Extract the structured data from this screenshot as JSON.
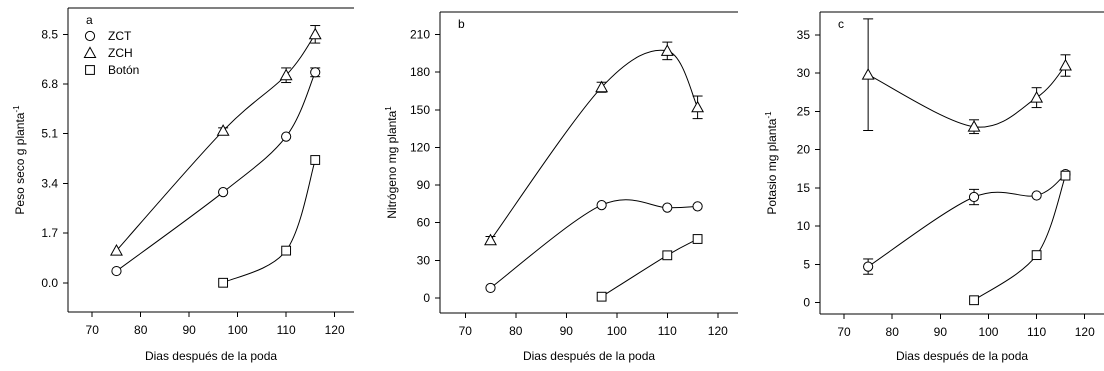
{
  "chart_data": [
    {
      "type": "scatter",
      "panel_label": "a",
      "ylabel": "Peso seco g planta",
      "ylabel_sup": "-1",
      "xlabel": "Dias después de la poda",
      "xlim": [
        65,
        124
      ],
      "ylim": [
        -1.0,
        9.4
      ],
      "xticks": [
        "70",
        "80",
        "90",
        "100",
        "110",
        "120"
      ],
      "yticks": [
        "0.0",
        "1.7",
        "3.4",
        "5.1",
        "6.8",
        "8.5"
      ],
      "legend": {
        "placement": "top-left",
        "entries": [
          "ZCT",
          "ZCH",
          "Botón"
        ]
      },
      "series": [
        {
          "name": "ZCT",
          "marker": "circle",
          "x": [
            75,
            97,
            110,
            116
          ],
          "y": [
            0.4,
            3.1,
            5.0,
            7.2
          ],
          "err": [
            0,
            0,
            0,
            0.15
          ]
        },
        {
          "name": "ZCH",
          "marker": "triangle",
          "x": [
            75,
            97,
            110,
            116
          ],
          "y": [
            1.1,
            5.2,
            7.1,
            8.5
          ],
          "err": [
            0,
            0.1,
            0.25,
            0.3
          ]
        },
        {
          "name": "Botón",
          "marker": "square",
          "x": [
            97,
            110,
            116
          ],
          "y": [
            0.0,
            1.1,
            4.2
          ],
          "err": [
            0,
            0,
            0
          ]
        }
      ]
    },
    {
      "type": "scatter",
      "panel_label": "b",
      "ylabel": "Nitrógeno mg planta",
      "ylabel_sup": "1",
      "xlabel": "Dias después de la poda",
      "xlim": [
        65,
        124
      ],
      "ylim": [
        -12,
        228
      ],
      "xticks": [
        "70",
        "80",
        "90",
        "100",
        "110",
        "120"
      ],
      "yticks": [
        "0",
        "30",
        "60",
        "90",
        "120",
        "150",
        "180",
        "210"
      ],
      "series": [
        {
          "name": "ZCT",
          "marker": "circle",
          "x": [
            75,
            97,
            110,
            116
          ],
          "y": [
            8,
            74,
            72,
            73
          ],
          "err": [
            0,
            0,
            0,
            0
          ]
        },
        {
          "name": "ZCH",
          "marker": "triangle",
          "x": [
            75,
            97,
            110,
            116
          ],
          "y": [
            46,
            168,
            197,
            152
          ],
          "err": [
            3,
            4,
            7,
            9
          ]
        },
        {
          "name": "Botón",
          "marker": "square",
          "x": [
            97,
            110,
            116
          ],
          "y": [
            1,
            34,
            47
          ],
          "err": [
            0,
            0,
            0
          ]
        }
      ]
    },
    {
      "type": "scatter",
      "panel_label": "c",
      "ylabel": "Potasio mg planta",
      "ylabel_sup": "-1",
      "xlabel": "Dias después de la poda",
      "xlim": [
        65,
        124
      ],
      "ylim": [
        -1.5,
        38
      ],
      "xticks": [
        "70",
        "80",
        "90",
        "100",
        "110",
        "120"
      ],
      "yticks": [
        "0",
        "5",
        "10",
        "15",
        "20",
        "25",
        "30",
        "35"
      ],
      "series": [
        {
          "name": "ZCT",
          "marker": "circle",
          "x": [
            75,
            97,
            110,
            116
          ],
          "y": [
            4.7,
            13.8,
            14.0,
            16.8
          ],
          "err": [
            1.0,
            1.0,
            0,
            0
          ]
        },
        {
          "name": "ZCH",
          "marker": "triangle",
          "x": [
            75,
            97,
            110,
            116
          ],
          "y": [
            29.8,
            23.0,
            26.8,
            31.0
          ],
          "err": [
            7.3,
            0.9,
            1.3,
            1.4
          ]
        },
        {
          "name": "Botón",
          "marker": "square",
          "x": [
            97,
            110,
            116
          ],
          "y": [
            0.3,
            6.2,
            16.6
          ],
          "err": [
            0,
            0,
            0
          ]
        }
      ]
    }
  ]
}
